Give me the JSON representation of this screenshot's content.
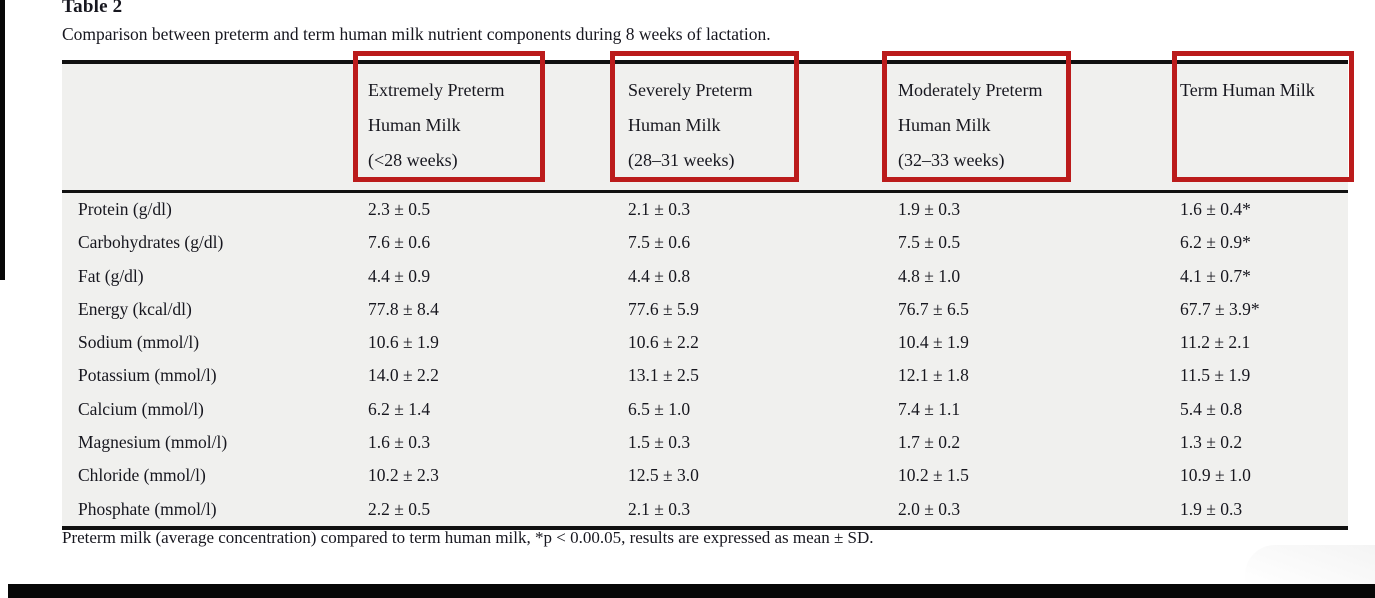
{
  "page": {
    "title": "Table 2",
    "caption": "Comparison between preterm and term human milk nutrient components during 8 weeks of lactation.",
    "footnote": "Preterm milk (average concentration) compared to term human milk, *p < 0.00.05, results are expressed as mean ± SD."
  },
  "table": {
    "columns": [
      {
        "lines": [
          "Extremely Preterm",
          "Human Milk",
          "(<28 weeks)"
        ]
      },
      {
        "lines": [
          "Severely Preterm",
          "Human Milk",
          "(28–31 weeks)"
        ]
      },
      {
        "lines": [
          "Moderately Preterm",
          "Human Milk",
          "(32–33 weeks)"
        ]
      },
      {
        "lines": [
          "Term Human Milk"
        ]
      }
    ],
    "rows": [
      {
        "label": "Protein (g/dl)",
        "values": [
          "2.3 ± 0.5",
          "2.1 ± 0.3",
          "1.9 ± 0.3",
          "1.6 ± 0.4*"
        ]
      },
      {
        "label": "Carbohydrates (g/dl)",
        "values": [
          "7.6 ± 0.6",
          "7.5 ± 0.6",
          "7.5 ± 0.5",
          "6.2 ± 0.9*"
        ]
      },
      {
        "label": "Fat (g/dl)",
        "values": [
          "4.4 ± 0.9",
          "4.4 ± 0.8",
          "4.8 ± 1.0",
          "4.1 ± 0.7*"
        ]
      },
      {
        "label": "Energy (kcal/dl)",
        "values": [
          "77.8 ± 8.4",
          "77.6 ± 5.9",
          "76.7 ± 6.5",
          "67.7 ± 3.9*"
        ]
      },
      {
        "label": "Sodium (mmol/l)",
        "values": [
          "10.6 ± 1.9",
          "10.6 ± 2.2",
          "10.4 ± 1.9",
          "11.2 ± 2.1"
        ]
      },
      {
        "label": "Potassium (mmol/l)",
        "values": [
          "14.0 ± 2.2",
          "13.1 ± 2.5",
          "12.1 ± 1.8",
          "11.5 ± 1.9"
        ]
      },
      {
        "label": "Calcium (mmol/l)",
        "values": [
          "6.2 ± 1.4",
          "6.5 ± 1.0",
          "7.4 ± 1.1",
          "5.4 ± 0.8"
        ]
      },
      {
        "label": "Magnesium (mmol/l)",
        "values": [
          "1.6 ± 0.3",
          "1.5 ± 0.3",
          "1.7 ± 0.2",
          "1.3 ± 0.2"
        ]
      },
      {
        "label": "Chloride (mmol/l)",
        "values": [
          "10.2 ± 2.3",
          "12.5 ± 3.0",
          "10.2 ± 1.5",
          "10.9 ± 1.0"
        ]
      },
      {
        "label": "Phosphate (mmol/l)",
        "values": [
          "2.2 ± 0.5",
          "2.1 ± 0.3",
          "2.0 ± 0.3",
          "1.9 ± 0.3"
        ]
      }
    ]
  },
  "colors": {
    "highlight_box": "#bb1b1b",
    "table_background": "#f0f0ee",
    "text": "#17171f",
    "rule": "#101010"
  }
}
